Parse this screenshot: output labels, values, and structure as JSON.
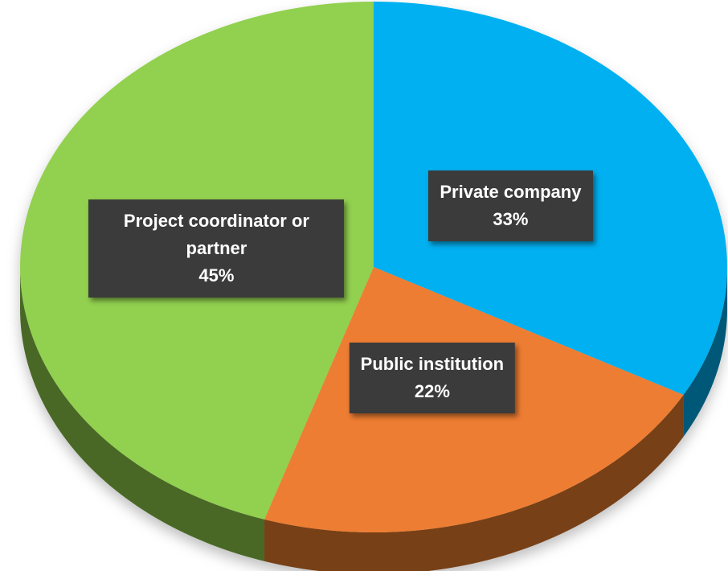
{
  "chart_data": {
    "type": "pie",
    "categories": [
      "Private company",
      "Public institution",
      "Project coordinator or partner"
    ],
    "values": [
      33,
      22,
      45
    ],
    "value_labels": [
      "33%",
      "22%",
      "45%"
    ],
    "colors": [
      "#00b0f0",
      "#ed7d31",
      "#92d050"
    ],
    "start_angle": 0,
    "direction": "clockwise",
    "three_d": true
  }
}
